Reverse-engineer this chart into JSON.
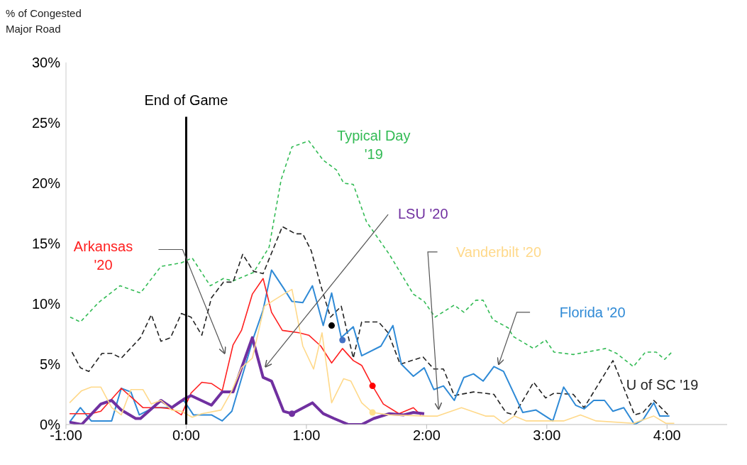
{
  "chart_data": {
    "type": "line",
    "ylabel": "% of Congested Major Road",
    "xlim": [
      -1,
      4.5
    ],
    "xticks": [
      {
        "value": -1,
        "label": "-1:00"
      },
      {
        "value": 0,
        "label": "0:00"
      },
      {
        "value": 1,
        "label": "1:00"
      },
      {
        "value": 2,
        "label": "2:00"
      },
      {
        "value": 3,
        "label": "3:00"
      },
      {
        "value": 4,
        "label": "4:00"
      }
    ],
    "ylim": [
      0,
      30
    ],
    "yticks": [
      {
        "value": 0,
        "label": "0%"
      },
      {
        "value": 5,
        "label": "5%"
      },
      {
        "value": 10,
        "label": "10%"
      },
      {
        "value": 15,
        "label": "15%"
      },
      {
        "value": 20,
        "label": "20%"
      },
      {
        "value": 25,
        "label": "25%"
      },
      {
        "value": 30,
        "label": "30%"
      }
    ],
    "marker": "none",
    "ref_lines": [
      {
        "axis": "x",
        "value": 0,
        "label": "End of Game",
        "color": "#000000"
      }
    ],
    "series": [
      {
        "name": "Typical Day '19",
        "color": "#33bb55",
        "line_style": "dashed",
        "x": [
          -0.965,
          -0.88,
          -0.73,
          -0.55,
          -0.38,
          -0.21,
          -0.04,
          0.05,
          0.2,
          0.31,
          0.39,
          0.56,
          0.69,
          0.79,
          0.88,
          1.02,
          1.14,
          1.25,
          1.31,
          1.39,
          1.5,
          1.69,
          1.89,
          1.98,
          2.07,
          2.23,
          2.31,
          2.41,
          2.47,
          2.55,
          2.68,
          2.72,
          2.89,
          2.99,
          3.06,
          3.22,
          3.49,
          3.58,
          3.72,
          3.82,
          3.91,
          3.98,
          4.05
        ],
        "values": [
          8.9,
          8.5,
          10.1,
          11.5,
          10.9,
          13.1,
          13.4,
          13.8,
          11.5,
          12.1,
          11.9,
          12.6,
          14.7,
          20.3,
          23.0,
          23.5,
          21.9,
          21.1,
          20.0,
          19.9,
          16.8,
          14.1,
          10.8,
          10.2,
          8.9,
          9.9,
          9.3,
          10.3,
          10.3,
          8.7,
          8.0,
          7.3,
          6.3,
          7.0,
          6.0,
          5.8,
          6.3,
          5.9,
          4.8,
          6.0,
          6.0,
          5.4,
          6.1
        ]
      },
      {
        "name": "U of SC '19",
        "color": "#222222",
        "line_style": "dashed",
        "x": [
          -0.95,
          -0.88,
          -0.81,
          -0.7,
          -0.62,
          -0.54,
          -0.38,
          -0.29,
          -0.21,
          -0.13,
          -0.04,
          0.04,
          0.13,
          0.21,
          0.31,
          0.39,
          0.47,
          0.56,
          0.64,
          0.8,
          0.91,
          0.97,
          1.04,
          1.12,
          1.2,
          1.29,
          1.39,
          1.46,
          1.6,
          1.68,
          1.78,
          1.97,
          2.06,
          2.14,
          2.23,
          2.39,
          2.56,
          2.66,
          2.73,
          2.89,
          2.99,
          3.06,
          3.22,
          3.31,
          3.55,
          3.73,
          3.8,
          3.89,
          4.01
        ],
        "values": [
          6.0,
          4.7,
          4.4,
          5.9,
          5.9,
          5.5,
          7.2,
          9.1,
          6.9,
          7.2,
          9.2,
          8.9,
          7.4,
          10.5,
          11.8,
          11.8,
          14.1,
          12.7,
          12.5,
          16.4,
          15.8,
          15.8,
          14.4,
          11.5,
          8.9,
          9.8,
          5.5,
          8.5,
          8.5,
          7.6,
          5.0,
          5.6,
          4.6,
          4.6,
          2.4,
          2.7,
          2.5,
          1.0,
          0.8,
          3.5,
          2.2,
          2.6,
          2.5,
          1.4,
          5.3,
          0.8,
          1.0,
          2.0,
          0.8
        ]
      },
      {
        "name": "Florida '20",
        "color": "#2f8ad6",
        "line_style": "solid",
        "x": [
          -0.97,
          -0.88,
          -0.79,
          -0.62,
          -0.54,
          -0.46,
          -0.39,
          -0.27,
          -0.19,
          -0.12,
          -0.02,
          0.06,
          0.21,
          0.3,
          0.38,
          0.56,
          0.64,
          0.71,
          0.81,
          0.88,
          0.97,
          1.05,
          1.14,
          1.21,
          1.29,
          1.39,
          1.46,
          1.62,
          1.72,
          1.79,
          1.89,
          1.98,
          2.06,
          2.14,
          2.23,
          2.31,
          2.39,
          2.47,
          2.56,
          2.64,
          2.8,
          2.91,
          3.05,
          3.14,
          3.24,
          3.31,
          3.39,
          3.48,
          3.55,
          3.64,
          3.73,
          3.8,
          3.89,
          3.94,
          4.02
        ],
        "values": [
          0.2,
          1.4,
          0.3,
          0.3,
          3.0,
          2.7,
          0.8,
          1.4,
          1.4,
          1.4,
          2.0,
          0.8,
          0.8,
          0.3,
          1.1,
          7.2,
          9.5,
          12.8,
          11.3,
          10.2,
          10.1,
          11.5,
          8.2,
          10.9,
          7.2,
          8.1,
          5.7,
          6.5,
          8.2,
          5.0,
          4.0,
          4.7,
          2.9,
          3.2,
          2.0,
          3.9,
          4.2,
          3.6,
          4.8,
          4.4,
          1.0,
          1.2,
          0.3,
          3.1,
          1.6,
          1.3,
          2.0,
          2.0,
          1.1,
          1.4,
          0.0,
          0.4,
          1.8,
          0.7,
          0.7
        ]
      },
      {
        "name": "Arkansas '20",
        "color": "#ff2020",
        "line_style": "solid",
        "x": [
          -0.97,
          -0.79,
          -0.71,
          -0.54,
          -0.46,
          -0.36,
          -0.21,
          -0.12,
          -0.04,
          0.04,
          0.13,
          0.21,
          0.3,
          0.39,
          0.46,
          0.55,
          0.64,
          0.71,
          0.8,
          0.94,
          1.02,
          1.12,
          1.21,
          1.3,
          1.39,
          1.46,
          1.55,
          1.64,
          1.77,
          1.89,
          1.95
        ],
        "values": [
          0.9,
          0.9,
          1.1,
          3.0,
          2.3,
          1.4,
          1.4,
          1.3,
          0.8,
          2.6,
          3.5,
          3.4,
          2.8,
          6.6,
          7.8,
          10.8,
          12.1,
          9.3,
          7.8,
          7.6,
          7.4,
          6.5,
          5.1,
          6.3,
          5.3,
          4.9,
          3.2,
          1.7,
          0.9,
          1.4,
          0.8
        ]
      },
      {
        "name": "LSU '20",
        "color": "#7030a0",
        "line_style": "solid",
        "x": [
          -0.97,
          -0.87,
          -0.71,
          -0.62,
          -0.54,
          -0.42,
          -0.38,
          -0.21,
          -0.12,
          -0.02,
          0.04,
          0.21,
          0.3,
          0.39,
          0.55,
          0.64,
          0.71,
          0.81,
          0.88,
          1.05,
          1.14,
          1.23,
          1.35,
          1.46,
          1.56,
          1.69,
          1.81,
          1.89,
          1.98
        ],
        "values": [
          0.2,
          0.0,
          1.7,
          2.0,
          1.2,
          0.5,
          0.5,
          2.0,
          1.4,
          2.1,
          2.4,
          1.6,
          2.7,
          2.7,
          7.2,
          3.9,
          3.6,
          1.1,
          0.9,
          1.8,
          0.9,
          0.5,
          0.0,
          0.0,
          0.5,
          0.9,
          0.8,
          1.0,
          0.9
        ]
      },
      {
        "name": "Vanderbilt '20",
        "color": "#ffd98a",
        "line_style": "solid",
        "x": [
          -0.97,
          -0.87,
          -0.79,
          -0.71,
          -0.62,
          -0.54,
          -0.46,
          -0.36,
          -0.29,
          -0.21,
          -0.12,
          -0.04,
          0.05,
          0.13,
          0.29,
          0.38,
          0.46,
          0.55,
          0.65,
          0.81,
          0.88,
          0.97,
          1.06,
          1.13,
          1.21,
          1.31,
          1.37,
          1.46,
          1.55,
          1.69,
          2.01,
          2.09,
          2.29,
          2.49,
          2.56,
          2.64,
          2.73,
          2.83,
          3.14,
          3.28,
          3.41,
          3.72,
          3.89,
          3.99,
          4.06
        ],
        "values": [
          1.8,
          2.8,
          3.1,
          3.1,
          1.4,
          0.8,
          2.9,
          2.9,
          1.7,
          2.0,
          1.2,
          1.1,
          0.6,
          0.9,
          1.2,
          2.8,
          4.7,
          5.5,
          9.8,
          10.8,
          11.2,
          6.5,
          4.6,
          7.6,
          1.8,
          3.8,
          3.6,
          1.8,
          1.0,
          0.8,
          0.7,
          0.7,
          1.4,
          0.7,
          0.7,
          0.1,
          0.7,
          0.3,
          0.3,
          0.8,
          0.3,
          0.1,
          0.7,
          0.1,
          0.1
        ]
      },
      {
        "type": "scatter",
        "marker": "circle",
        "color": "#000000",
        "x": [
          1.21
        ],
        "values": [
          8.2
        ]
      },
      {
        "type": "scatter",
        "marker": "circle",
        "color": "#4472c4",
        "x": [
          1.3
        ],
        "values": [
          7.0
        ]
      },
      {
        "type": "scatter",
        "marker": "circle",
        "color": "#ff0000",
        "x": [
          1.55
        ],
        "values": [
          3.2
        ]
      },
      {
        "type": "scatter",
        "marker": "circle",
        "color": "#7030a0",
        "x": [
          0.88
        ],
        "values": [
          0.9
        ]
      },
      {
        "type": "scatter",
        "marker": "circle",
        "color": "#ffe08a",
        "x": [
          1.55
        ],
        "values": [
          1.0
        ]
      }
    ]
  }
}
